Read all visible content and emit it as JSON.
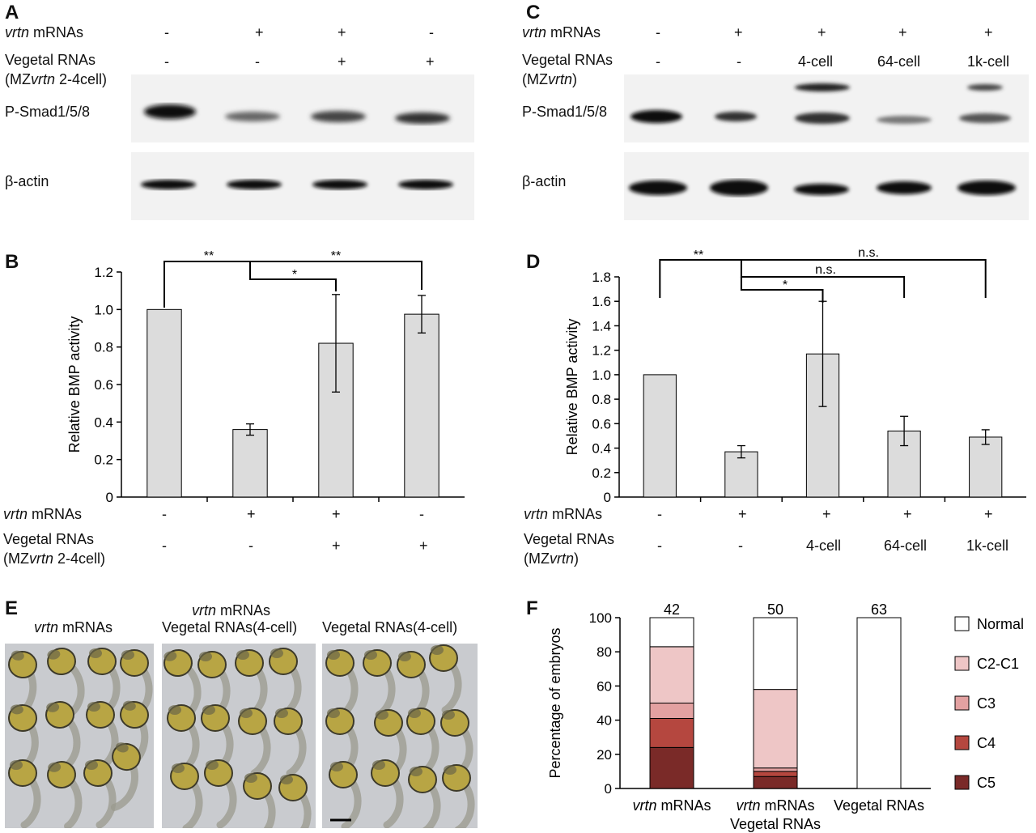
{
  "panels": {
    "A": "A",
    "B": "B",
    "C": "C",
    "D": "D",
    "E": "E",
    "F": "F"
  },
  "panelA": {
    "row1_italic": "vrtn",
    "row1_rest": " mRNAs",
    "row1_signs": [
      "-",
      "+",
      "+",
      "-"
    ],
    "row2_line1": "Vegetal RNAs",
    "row2_line2_a": "(MZ",
    "row2_line2_b": "vrtn",
    "row2_line2_c": " 2-4cell)",
    "row2_signs": [
      "-",
      "-",
      "+",
      "+"
    ],
    "blot1_label": "P-Smad1/5/8",
    "blot2_label": "β-actin"
  },
  "panelC": {
    "row1_italic": "vrtn",
    "row1_rest": " mRNAs",
    "row1_signs": [
      "-",
      "+",
      "+",
      "+",
      "+"
    ],
    "row2_line1": "Vegetal RNAs",
    "row2_line2_a": "(MZ",
    "row2_line2_b": "vrtn",
    "row2_line2_c": ")",
    "row2_signs": [
      "-",
      "-",
      "4-cell",
      "64-cell",
      "1k-cell"
    ],
    "blot1_label": "P-Smad1/5/8",
    "blot2_label": "β-actin"
  },
  "panelB": {
    "row1_italic": "vrtn",
    "row1_rest": " mRNAs",
    "row2_line1": "Vegetal RNAs",
    "row2_line2_a": "(MZ",
    "row2_line2_b": "vrtn",
    "row2_line2_c": " 2-4cell)",
    "row1_signs": [
      "-",
      "+",
      "+",
      "-"
    ],
    "row2_signs": [
      "-",
      "-",
      "+",
      "+"
    ],
    "sig": [
      "**",
      "*",
      "**"
    ]
  },
  "panelD": {
    "row1_italic": "vrtn",
    "row1_rest": " mRNAs",
    "row2_line1": "Vegetal RNAs",
    "row2_line2_a": "(MZ",
    "row2_line2_b": "vrtn",
    "row2_line2_c": ")",
    "row1_signs": [
      "-",
      "+",
      "+",
      "+",
      "+"
    ],
    "row2_signs": [
      "-",
      "-",
      "4-cell",
      "64-cell",
      "1k-cell"
    ],
    "sig": [
      "**",
      "n.s.",
      "n.s.",
      "*"
    ]
  },
  "panelE": {
    "label1_italic": "vrtn",
    "label1_rest": " mRNAs",
    "label2_line1_italic": "vrtn",
    "label2_line1_rest": " mRNAs",
    "label2_line2": "Vegetal RNAs(4-cell)",
    "label3": "Vegetal RNAs(4-cell)"
  },
  "panelF": {
    "x_labels": [
      {
        "italic": "vrtn",
        "rest": " mRNAs",
        "line2": ""
      },
      {
        "italic": "vrtn",
        "rest": " mRNAs",
        "line2": "Vegetal RNAs"
      },
      {
        "italic": "",
        "rest": "Vegetal RNAs",
        "line2": ""
      }
    ],
    "legend": [
      "Normal",
      "C2-C1",
      "C3",
      "C4",
      "C5"
    ]
  },
  "colors": {
    "bar_fill": "#dcdcdc",
    "normal": "#ffffff",
    "c2c1": "#eec6c6",
    "c3": "#e3a1a1",
    "c4": "#b5473f",
    "c5": "#7a2a28"
  },
  "chart_data": [
    {
      "type": "bar",
      "panel": "B",
      "categories": [
        "1",
        "2",
        "3",
        "4"
      ],
      "values": [
        1.0,
        0.36,
        0.82,
        0.975
      ],
      "errors": [
        0.0,
        0.03,
        0.26,
        0.1
      ],
      "ylabel": "Relative BMP activity",
      "ylim": [
        0,
        1.2
      ],
      "yticks": [
        "0",
        "0.2",
        "0.4",
        "0.6",
        "0.8",
        "1.0",
        "1.2"
      ]
    },
    {
      "type": "bar",
      "panel": "D",
      "categories": [
        "1",
        "2",
        "3",
        "4",
        "5"
      ],
      "values": [
        1.0,
        0.37,
        1.17,
        0.54,
        0.49
      ],
      "errors": [
        0.0,
        0.05,
        0.43,
        0.12,
        0.06
      ],
      "ylabel": "Relative BMP activity",
      "ylim": [
        0,
        1.8
      ],
      "yticks": [
        "0",
        "0.2",
        "0.4",
        "0.6",
        "0.8",
        "1.0",
        "1.2",
        "1.4",
        "1.6",
        "1.8"
      ]
    },
    {
      "type": "bar",
      "stacked": true,
      "panel": "F",
      "categories": [
        "vrtn mRNAs",
        "vrtn mRNAs Vegetal RNAs",
        "Vegetal RNAs"
      ],
      "n_labels": [
        "42",
        "50",
        "63"
      ],
      "series": [
        {
          "name": "C5",
          "values": [
            24,
            7,
            0
          ]
        },
        {
          "name": "C4",
          "values": [
            17,
            3,
            0
          ]
        },
        {
          "name": "C3",
          "values": [
            9,
            2,
            0
          ]
        },
        {
          "name": "C2-C1",
          "values": [
            33,
            46,
            0
          ]
        },
        {
          "name": "Normal",
          "values": [
            17,
            42,
            100
          ]
        }
      ],
      "ylabel": "Percentage of embryos",
      "ylim": [
        0,
        100
      ],
      "yticks": [
        "0",
        "20",
        "40",
        "60",
        "80",
        "100"
      ]
    }
  ]
}
